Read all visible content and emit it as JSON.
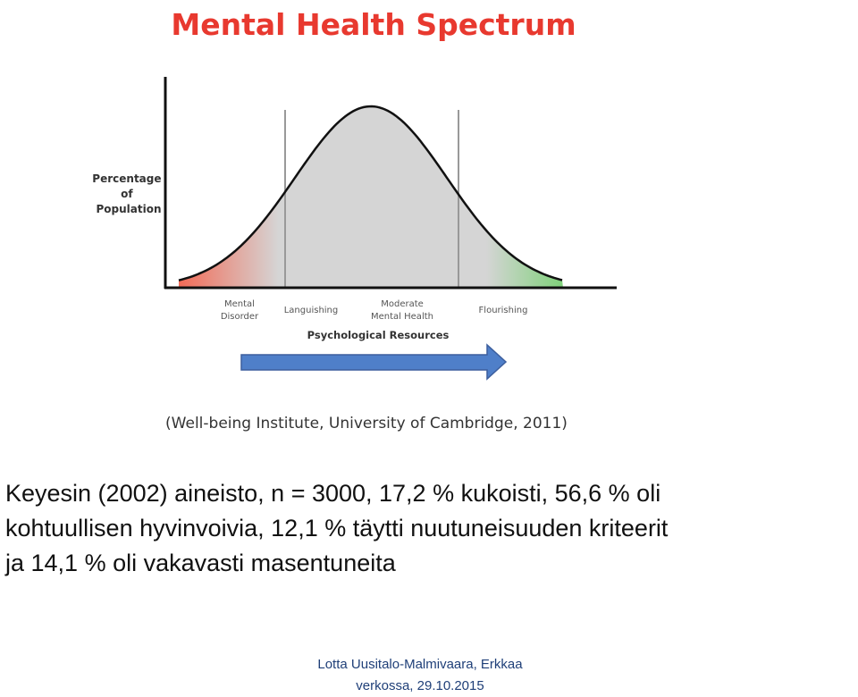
{
  "title": "Mental Health Spectrum",
  "colors": {
    "title": "#e8392f",
    "disorder": "#f26b57",
    "moderate": "#d5d5d5",
    "flourishing": "#7fd17a",
    "arrow": "#4f7fc9",
    "footer": "#1f3f78"
  },
  "chart_data": {
    "type": "area",
    "ylabel": [
      "Percentage",
      "of",
      "Population"
    ],
    "xlabel": "Psychological Resources",
    "categories": [
      {
        "lines": [
          "Mental",
          "Disorder"
        ],
        "color": "#f26b57"
      },
      {
        "lines": [
          "Languishing"
        ],
        "color": "#d5d5d5"
      },
      {
        "lines": [
          "Moderate",
          "Mental Health"
        ],
        "color": "#d5d5d5"
      },
      {
        "lines": [
          "Flourishing"
        ],
        "color": "#7fd17a"
      }
    ],
    "curve": "normal-distribution",
    "source": "(Well-being Institute, University of Cambridge, 2011)"
  },
  "body_text": [
    "Keyesin (2002) aineisto, n = 3000, 17,2 %  kukoisti, 56,6 % oli",
    "kohtuullisen hyvinvoivia, 12,1 % täytti nuutuneisuuden kriteerit",
    "ja 14,1 % oli vakavasti masentuneita"
  ],
  "footer": {
    "line1": "Lotta Uusitalo-Malmivaara, Erkkaa",
    "line2": "verkossa, 29.10.2015"
  }
}
